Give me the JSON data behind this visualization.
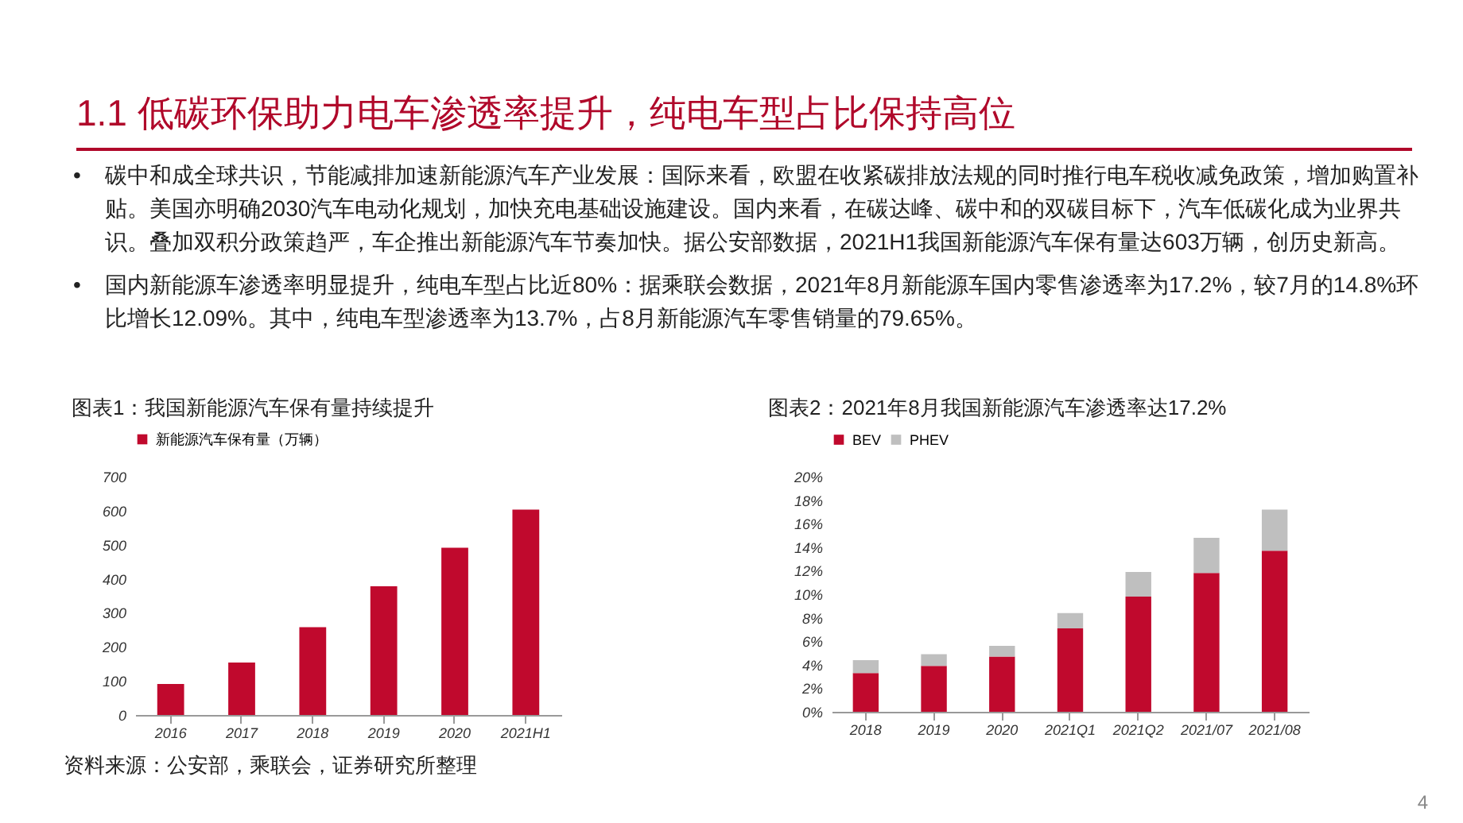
{
  "chart_data": [
    {
      "type": "other",
      "title": "1.1 低碳环保助力电车渗透率提升，纯电车型占比保持高位",
      "annotations": [
        "•碳中和成全球共识，节能减排加速新能源汽车产业发展：国际来看，欧盟在收紧碳排放法规的同时推行电车税收减免政策，增加购置补贴。美国亦明确2030汽车电动化规划，加快充电基础设施建设。国内来看，在碳达峰、碳中和的双碳目标下，汽车低碳化成为业界共识。叠加双积分政策趋严，车企推出新能源汽车节奏加快。据公安部数据，2021H1我国新能源汽车保有量达603万辆，创历史新高。",
        "•国内新能源车渗透率明显提升，纯电车型占比近80%：据乘联会数据，2021年8月新能源车国内零售渗透率为17.2%，较7月的14.8%环比增长12.09%。其中，纯电车型渗透率为13.7%，占8月新能源汽车零售销量的79.65%。",
        "4"
      ]
    },
    {
      "type": "bar",
      "title": "图表1：我国新能源汽车保有量持续提升",
      "annotations": [
        "资料来源：公安部，乘联会，证券研究所整理"
      ],
      "categories": [
        "2016",
        "2017",
        "2018",
        "2019",
        "2020",
        "2021H1"
      ],
      "series": [
        {
          "name": "新能源汽车保有量（万辆）",
          "color": "#c0092d",
          "values": [
            91,
            154,
            258,
            378,
            491,
            603
          ]
        }
      ],
      "ylim": [
        0,
        700
      ],
      "yticks": [
        0,
        100,
        200,
        300,
        400,
        500,
        600,
        700
      ],
      "grid": false,
      "legend": "top"
    },
    {
      "type": "bar",
      "title": "图表2：2021年8月我国新能源汽车渗透率达17.2%",
      "categories": [
        "2018",
        "2019",
        "2020",
        "2021Q1",
        "2021Q2",
        "2021/07",
        "2021/08"
      ],
      "stacked": true,
      "series": [
        {
          "name": "BEV",
          "color": "#c0092d",
          "values": [
            3.3,
            3.9,
            4.7,
            7.1,
            9.8,
            11.8,
            13.7
          ]
        },
        {
          "name": "PHEV",
          "color": "#bfbfbf",
          "values": [
            1.1,
            1.0,
            0.9,
            1.3,
            2.1,
            3.0,
            3.5
          ]
        }
      ],
      "ylim": [
        0,
        20
      ],
      "yticks": [
        {
          "value": 0,
          "label": "0%"
        },
        {
          "value": 2,
          "label": "2%"
        },
        {
          "value": 4,
          "label": "4%"
        },
        {
          "value": 6,
          "label": "6%"
        },
        {
          "value": 8,
          "label": "8%"
        },
        {
          "value": 10,
          "label": "10%"
        },
        {
          "value": 12,
          "label": "12%"
        },
        {
          "value": 14,
          "label": "14%"
        },
        {
          "value": 16,
          "label": "16%"
        },
        {
          "value": 18,
          "label": "18%"
        },
        {
          "value": 20,
          "label": "20%"
        }
      ],
      "grid": false,
      "legend": "top"
    }
  ]
}
